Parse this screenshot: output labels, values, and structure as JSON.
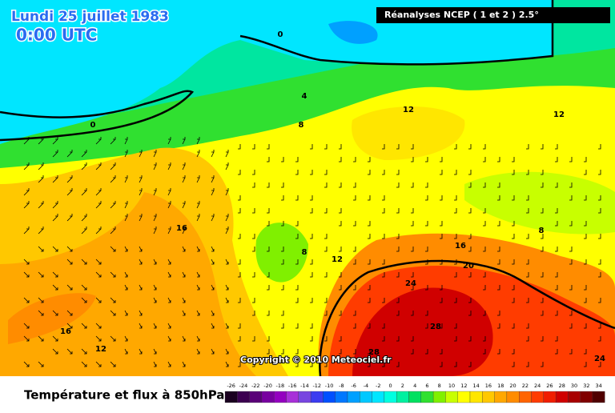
{
  "header": {
    "date": "Lundi 25 juillet 1983",
    "time": "0:00 UTC",
    "source": "Réanalyses NCEP ( 1 et 2 ) 2.5°"
  },
  "copyright": "Copyright © 2010 Meteociel.fr",
  "footer": {
    "title": "Température et flux à 850hPa"
  },
  "contour_labels": [
    0,
    0,
    4,
    8,
    12,
    12,
    16,
    8,
    12,
    16,
    20,
    24,
    28,
    28,
    16,
    12,
    8,
    24
  ],
  "legend": [
    {
      "value": -26,
      "color": "#1a0020"
    },
    {
      "value": -24,
      "color": "#3c0050"
    },
    {
      "value": -22,
      "color": "#5a0078"
    },
    {
      "value": -20,
      "color": "#7800a0"
    },
    {
      "value": -18,
      "color": "#9400c0"
    },
    {
      "value": -16,
      "color": "#a830d8"
    },
    {
      "value": -14,
      "color": "#7846e0"
    },
    {
      "value": -12,
      "color": "#3c3cf0"
    },
    {
      "value": -10,
      "color": "#0050ff"
    },
    {
      "value": -8,
      "color": "#0078ff"
    },
    {
      "value": -6,
      "color": "#00a0ff"
    },
    {
      "value": -4,
      "color": "#00c8ff"
    },
    {
      "value": -2,
      "color": "#00e6ff"
    },
    {
      "value": 0,
      "color": "#00ffe0"
    },
    {
      "value": 2,
      "color": "#00f0a0"
    },
    {
      "value": 4,
      "color": "#00e060"
    },
    {
      "value": 6,
      "color": "#30e030"
    },
    {
      "value": 8,
      "color": "#80f000"
    },
    {
      "value": 10,
      "color": "#c8ff00"
    },
    {
      "value": 12,
      "color": "#ffff00"
    },
    {
      "value": 14,
      "color": "#ffe600"
    },
    {
      "value": 16,
      "color": "#ffc800"
    },
    {
      "value": 18,
      "color": "#ffa800"
    },
    {
      "value": 20,
      "color": "#ff8c00"
    },
    {
      "value": 22,
      "color": "#ff6400"
    },
    {
      "value": 24,
      "color": "#ff3c00"
    },
    {
      "value": 26,
      "color": "#f01e00"
    },
    {
      "value": 28,
      "color": "#d00000"
    },
    {
      "value": 30,
      "color": "#a80000"
    },
    {
      "value": 32,
      "color": "#800000"
    },
    {
      "value": 34,
      "color": "#500000"
    }
  ]
}
